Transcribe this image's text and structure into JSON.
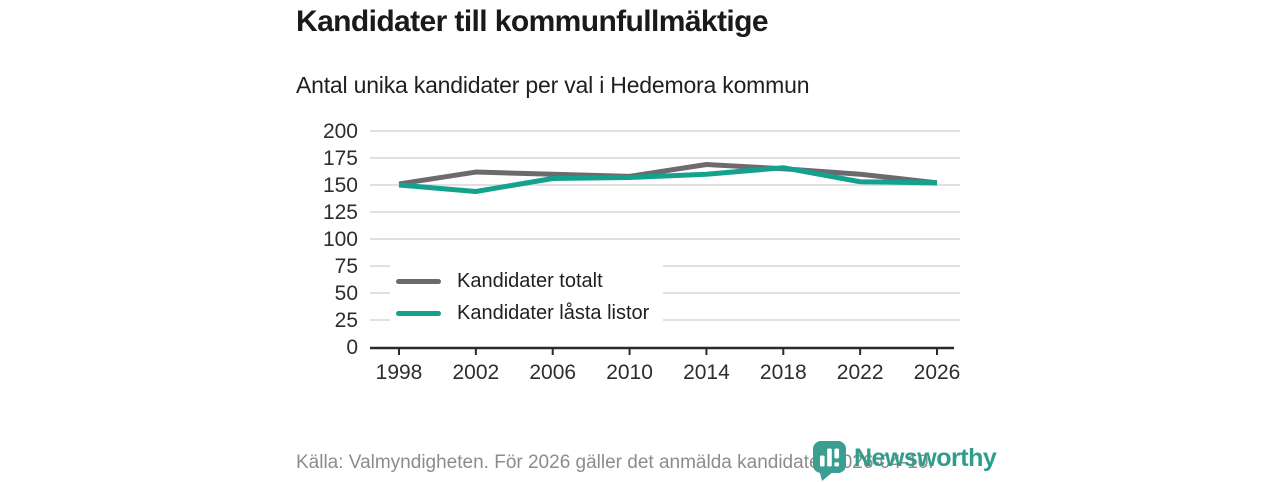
{
  "chart_data": {
    "type": "line",
    "title": "Kandidater till kommunfullmäktige",
    "subtitle": "Antal unika kandidater per val i Hedemora kommun",
    "categories": [
      "1998",
      "2002",
      "2006",
      "2010",
      "2014",
      "2018",
      "2022",
      "2026"
    ],
    "series": [
      {
        "name": "Kandidater totalt",
        "color": "#6e696e",
        "values": [
          151,
          162,
          160,
          158,
          169,
          165,
          160,
          152
        ]
      },
      {
        "name": "Kandidater låsta listor",
        "color": "#14a28f",
        "values": [
          150,
          144,
          156,
          157,
          160,
          166,
          153,
          152
        ]
      }
    ],
    "xlabel": "",
    "ylabel": "",
    "ylim": [
      0,
      200
    ],
    "yticks": [
      0,
      25,
      50,
      75,
      100,
      125,
      150,
      175,
      200
    ],
    "grid": "horizontal",
    "legend_position": "inside-left",
    "axis_color": "#2b2b2b",
    "gridline_color": "#e0e0e0",
    "line_width": 5
  },
  "footer": {
    "source": "Källa: Valmyndigheten. För 2026 gäller det anmälda kandidater 2026-04-10."
  },
  "logo": {
    "name": "Newsworthy",
    "brand_color": "#2f9c8c",
    "icon": "newsworthy-speech-bubble-bar-chart-icon",
    "icon_color": "#3a9e90"
  }
}
